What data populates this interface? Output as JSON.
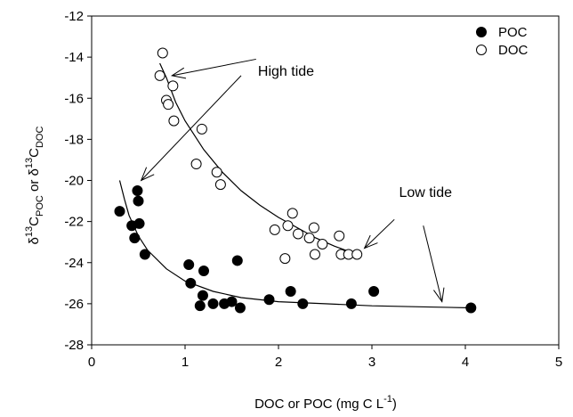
{
  "chart_data": {
    "type": "scatter",
    "xlabel": "DOC or POC (mg C L",
    "xlabel_sup": "-1",
    "xlabel_end": ")",
    "ylabel_parts": [
      "δ",
      "13",
      "C",
      "POC",
      " or δ",
      "13",
      "C",
      "DOC"
    ],
    "xlim": [
      0,
      5
    ],
    "ylim": [
      -28,
      -12
    ],
    "xticks": [
      0,
      1,
      2,
      3,
      4,
      5
    ],
    "yticks": [
      -28,
      -26,
      -24,
      -22,
      -20,
      -18,
      -16,
      -14,
      -12
    ],
    "grid": false,
    "legend_position": "top-right",
    "series": [
      {
        "name": "POC",
        "marker": "filled-circle",
        "color": "#000000",
        "points": [
          [
            0.3,
            -21.5
          ],
          [
            0.43,
            -22.2
          ],
          [
            0.46,
            -22.8
          ],
          [
            0.49,
            -20.5
          ],
          [
            0.5,
            -21.0
          ],
          [
            0.51,
            -22.1
          ],
          [
            0.57,
            -23.6
          ],
          [
            1.04,
            -24.1
          ],
          [
            1.06,
            -25.0
          ],
          [
            1.16,
            -26.1
          ],
          [
            1.19,
            -25.6
          ],
          [
            1.2,
            -24.4
          ],
          [
            1.3,
            -26.0
          ],
          [
            1.42,
            -26.0
          ],
          [
            1.5,
            -25.9
          ],
          [
            1.56,
            -23.9
          ],
          [
            1.59,
            -26.2
          ],
          [
            1.9,
            -25.8
          ],
          [
            2.13,
            -25.4
          ],
          [
            2.26,
            -26.0
          ],
          [
            2.78,
            -26.0
          ],
          [
            3.02,
            -25.4
          ],
          [
            4.06,
            -26.2
          ]
        ],
        "fit": [
          [
            0.3,
            -20.0
          ],
          [
            0.35,
            -20.9
          ],
          [
            0.4,
            -21.7
          ],
          [
            0.5,
            -22.7
          ],
          [
            0.6,
            -23.4
          ],
          [
            0.8,
            -24.3
          ],
          [
            1.0,
            -24.9
          ],
          [
            1.3,
            -25.4
          ],
          [
            1.6,
            -25.7
          ],
          [
            2.0,
            -25.9
          ],
          [
            2.5,
            -26.0
          ],
          [
            3.0,
            -26.1
          ],
          [
            3.5,
            -26.15
          ],
          [
            4.06,
            -26.2
          ]
        ]
      },
      {
        "name": "DOC",
        "marker": "open-circle",
        "color": "#000000",
        "points": [
          [
            0.73,
            -14.9
          ],
          [
            0.76,
            -13.8
          ],
          [
            0.8,
            -16.1
          ],
          [
            0.82,
            -16.3
          ],
          [
            0.87,
            -15.4
          ],
          [
            0.88,
            -17.1
          ],
          [
            1.12,
            -19.2
          ],
          [
            1.18,
            -17.5
          ],
          [
            1.34,
            -19.6
          ],
          [
            1.38,
            -20.2
          ],
          [
            1.96,
            -22.4
          ],
          [
            2.07,
            -23.8
          ],
          [
            2.1,
            -22.2
          ],
          [
            2.15,
            -21.6
          ],
          [
            2.21,
            -22.6
          ],
          [
            2.33,
            -22.8
          ],
          [
            2.38,
            -22.3
          ],
          [
            2.39,
            -23.6
          ],
          [
            2.47,
            -23.1
          ],
          [
            2.65,
            -22.7
          ],
          [
            2.67,
            -23.6
          ],
          [
            2.75,
            -23.6
          ],
          [
            2.84,
            -23.6
          ]
        ],
        "fit": [
          [
            0.73,
            -14.3
          ],
          [
            0.8,
            -15.0
          ],
          [
            0.9,
            -16.2
          ],
          [
            1.0,
            -17.1
          ],
          [
            1.2,
            -18.5
          ],
          [
            1.4,
            -19.6
          ],
          [
            1.6,
            -20.5
          ],
          [
            1.8,
            -21.2
          ],
          [
            2.0,
            -21.8
          ],
          [
            2.2,
            -22.3
          ],
          [
            2.4,
            -22.8
          ],
          [
            2.6,
            -23.2
          ],
          [
            2.84,
            -23.6
          ]
        ]
      }
    ],
    "annotations": [
      {
        "text": "High tide",
        "label_at": [
          1.78,
          -14.9
        ],
        "arrows": [
          {
            "from": [
              1.76,
              -14.1
            ],
            "to": [
              0.86,
              -14.9
            ]
          },
          {
            "from": [
              1.6,
              -14.9
            ],
            "to": [
              0.53,
              -20.0
            ]
          }
        ]
      },
      {
        "text": "Low tide",
        "label_at": [
          3.29,
          -20.8
        ],
        "arrows": [
          {
            "from": [
              3.24,
              -21.9
            ],
            "to": [
              2.92,
              -23.3
            ]
          },
          {
            "from": [
              3.55,
              -22.2
            ],
            "to": [
              3.75,
              -25.9
            ]
          }
        ]
      }
    ]
  }
}
